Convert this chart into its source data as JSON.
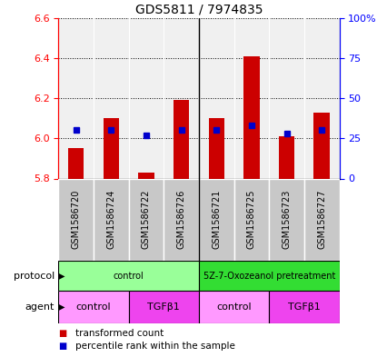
{
  "title": "GDS5811 / 7974835",
  "samples": [
    "GSM1586720",
    "GSM1586724",
    "GSM1586722",
    "GSM1586726",
    "GSM1586721",
    "GSM1586725",
    "GSM1586723",
    "GSM1586727"
  ],
  "red_values": [
    5.95,
    6.1,
    5.83,
    6.19,
    6.1,
    6.41,
    6.01,
    6.13
  ],
  "blue_percentiles": [
    30,
    30,
    27,
    30,
    30,
    33,
    28,
    30
  ],
  "ylim_left": [
    5.8,
    6.6
  ],
  "ylim_right": [
    0,
    100
  ],
  "yticks_left": [
    5.8,
    6.0,
    6.2,
    6.4,
    6.6
  ],
  "yticks_right": [
    0,
    25,
    50,
    75,
    100
  ],
  "ytick_labels_right": [
    "0",
    "25",
    "50",
    "75",
    "100%"
  ],
  "protocol_groups": [
    {
      "label": "control",
      "start": 0,
      "end": 4,
      "color": "#99FF99"
    },
    {
      "label": "5Z-7-Oxozeanol pretreatment",
      "start": 4,
      "end": 8,
      "color": "#33DD33"
    }
  ],
  "agent_groups": [
    {
      "label": "control",
      "start": 0,
      "end": 2,
      "color": "#FF99FF"
    },
    {
      "label": "TGFβ1",
      "start": 2,
      "end": 4,
      "color": "#EE44EE"
    },
    {
      "label": "control",
      "start": 4,
      "end": 6,
      "color": "#FF99FF"
    },
    {
      "label": "TGFβ1",
      "start": 6,
      "end": 8,
      "color": "#EE44EE"
    }
  ],
  "red_color": "#CC0000",
  "blue_color": "#0000CC",
  "bar_width": 0.45,
  "baseline": 5.8,
  "sample_bg_color": "#C8C8C8",
  "plot_bg_color": "#F0F0F0"
}
